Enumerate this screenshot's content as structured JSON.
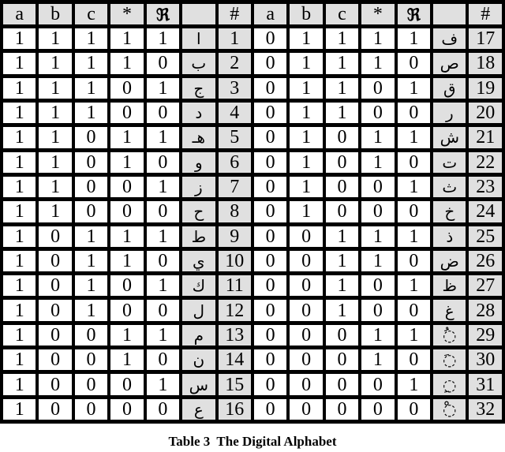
{
  "table": {
    "headers": [
      "a",
      "b",
      "c",
      "*",
      "ℜ",
      "",
      "#",
      "a",
      "b",
      "c",
      "*",
      "ℜ",
      "",
      "#"
    ],
    "rows": [
      {
        "left": {
          "a": "1",
          "b": "1",
          "c": "1",
          "s": "1",
          "r": "1",
          "letter": "ا",
          "n": "1"
        },
        "right": {
          "a": "0",
          "b": "1",
          "c": "1",
          "s": "1",
          "r": "1",
          "letter": "ف",
          "n": "17"
        }
      },
      {
        "left": {
          "a": "1",
          "b": "1",
          "c": "1",
          "s": "1",
          "r": "0",
          "letter": "ب",
          "n": "2"
        },
        "right": {
          "a": "0",
          "b": "1",
          "c": "1",
          "s": "1",
          "r": "0",
          "letter": "ص",
          "n": "18"
        }
      },
      {
        "left": {
          "a": "1",
          "b": "1",
          "c": "1",
          "s": "0",
          "r": "1",
          "letter": "ج",
          "n": "3"
        },
        "right": {
          "a": "0",
          "b": "1",
          "c": "1",
          "s": "0",
          "r": "1",
          "letter": "ق",
          "n": "19"
        }
      },
      {
        "left": {
          "a": "1",
          "b": "1",
          "c": "1",
          "s": "0",
          "r": "0",
          "letter": "د",
          "n": "4"
        },
        "right": {
          "a": "0",
          "b": "1",
          "c": "1",
          "s": "0",
          "r": "0",
          "letter": "ر",
          "n": "20"
        }
      },
      {
        "left": {
          "a": "1",
          "b": "1",
          "c": "0",
          "s": "1",
          "r": "1",
          "letter": "هـ",
          "n": "5"
        },
        "right": {
          "a": "0",
          "b": "1",
          "c": "0",
          "s": "1",
          "r": "1",
          "letter": "ش",
          "n": "21"
        }
      },
      {
        "left": {
          "a": "1",
          "b": "1",
          "c": "0",
          "s": "1",
          "r": "0",
          "letter": "و",
          "n": "6"
        },
        "right": {
          "a": "0",
          "b": "1",
          "c": "0",
          "s": "1",
          "r": "0",
          "letter": "ت",
          "n": "22"
        }
      },
      {
        "left": {
          "a": "1",
          "b": "1",
          "c": "0",
          "s": "0",
          "r": "1",
          "letter": "ز",
          "n": "7"
        },
        "right": {
          "a": "0",
          "b": "1",
          "c": "0",
          "s": "0",
          "r": "1",
          "letter": "ث",
          "n": "23"
        }
      },
      {
        "left": {
          "a": "1",
          "b": "1",
          "c": "0",
          "s": "0",
          "r": "0",
          "letter": "ح",
          "n": "8"
        },
        "right": {
          "a": "0",
          "b": "1",
          "c": "0",
          "s": "0",
          "r": "0",
          "letter": "خ",
          "n": "24"
        }
      },
      {
        "left": {
          "a": "1",
          "b": "0",
          "c": "1",
          "s": "1",
          "r": "1",
          "letter": "ط",
          "n": "9"
        },
        "right": {
          "a": "0",
          "b": "0",
          "c": "1",
          "s": "1",
          "r": "1",
          "letter": "ذ",
          "n": "25"
        }
      },
      {
        "left": {
          "a": "1",
          "b": "0",
          "c": "1",
          "s": "1",
          "r": "0",
          "letter": "ي",
          "n": "10"
        },
        "right": {
          "a": "0",
          "b": "0",
          "c": "1",
          "s": "1",
          "r": "0",
          "letter": "ض",
          "n": "26"
        }
      },
      {
        "left": {
          "a": "1",
          "b": "0",
          "c": "1",
          "s": "0",
          "r": "1",
          "letter": "ك",
          "n": "11"
        },
        "right": {
          "a": "0",
          "b": "0",
          "c": "1",
          "s": "0",
          "r": "1",
          "letter": "ظ",
          "n": "27"
        }
      },
      {
        "left": {
          "a": "1",
          "b": "0",
          "c": "1",
          "s": "0",
          "r": "0",
          "letter": "ل",
          "n": "12"
        },
        "right": {
          "a": "0",
          "b": "0",
          "c": "1",
          "s": "0",
          "r": "0",
          "letter": "غ",
          "n": "28"
        }
      },
      {
        "left": {
          "a": "1",
          "b": "0",
          "c": "0",
          "s": "1",
          "r": "1",
          "letter": "م",
          "n": "13"
        },
        "right": {
          "a": "0",
          "b": "0",
          "c": "0",
          "s": "1",
          "r": "1",
          "letter": "◌ُ",
          "n": "29"
        }
      },
      {
        "left": {
          "a": "1",
          "b": "0",
          "c": "0",
          "s": "1",
          "r": "0",
          "letter": "ن",
          "n": "14"
        },
        "right": {
          "a": "0",
          "b": "0",
          "c": "0",
          "s": "1",
          "r": "0",
          "letter": "◌َ",
          "n": "30"
        }
      },
      {
        "left": {
          "a": "1",
          "b": "0",
          "c": "0",
          "s": "0",
          "r": "1",
          "letter": "س",
          "n": "15"
        },
        "right": {
          "a": "0",
          "b": "0",
          "c": "0",
          "s": "0",
          "r": "1",
          "letter": "◌ِ",
          "n": "31"
        }
      },
      {
        "left": {
          "a": "1",
          "b": "0",
          "c": "0",
          "s": "0",
          "r": "0",
          "letter": "ع",
          "n": "16"
        },
        "right": {
          "a": "0",
          "b": "0",
          "c": "0",
          "s": "0",
          "r": "0",
          "letter": "◌ْ",
          "n": "32"
        }
      }
    ]
  },
  "caption": "Table 3  The Digital Alphabet"
}
